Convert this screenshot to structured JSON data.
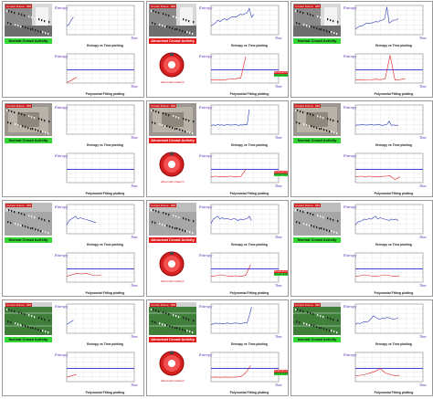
{
  "labels": {
    "frame_tag": "Current Frame : ###",
    "entropy_axis": "Entropy",
    "time_axis": "Time",
    "entropy_caption": "Entropy vs Time plotting",
    "poly_caption": "Polynomial Fitting plotting",
    "normal_status": "Normal Crowd Activity",
    "abnormal_status": "Abnormal Crowd Activity",
    "alarm_caption": "Abnormal Crowd (!)",
    "legend_abnormal": "Abnormal Crowd Activity",
    "legend_normal": "Normal Crowd Activity"
  },
  "colors": {
    "entropy_line": "#2b3bb8",
    "threshold_line": "#2a2ad8",
    "fit_line": "#e02020",
    "grid": "#d9d9d9",
    "normal": "#33d633",
    "abnormal": "#e31b1b"
  },
  "panels": [
    {
      "scene": "indoor",
      "state": "normal",
      "entropy": [
        0.3,
        0.35,
        0.5,
        0.6
      ],
      "n": 4,
      "fit": [
        0.02,
        0.1,
        0.2
      ]
    },
    {
      "scene": "indoor",
      "state": "abnormal",
      "entropy": [
        0.3,
        0.35,
        0.4,
        0.5,
        0.45,
        0.5,
        0.55,
        0.5,
        0.55,
        0.6,
        0.62,
        0.6,
        0.65,
        0.7,
        0.68,
        0.72,
        0.75,
        0.9,
        0.6,
        0.7
      ],
      "n": 20,
      "fit": [
        0.1,
        0.12,
        0.1,
        0.12,
        0.14,
        0.15,
        0.18,
        0.9
      ]
    },
    {
      "scene": "indoor",
      "state": "normal",
      "entropy": [
        0.2,
        0.25,
        0.3,
        0.3,
        0.35,
        0.4,
        0.38,
        0.4,
        0.42,
        0.45,
        0.43,
        0.48,
        0.5,
        0.55,
        0.95,
        0.4,
        0.45,
        0.5,
        0.5,
        0.55
      ],
      "n": 20,
      "fit": [
        0.1,
        0.12,
        0.1,
        0.11,
        0.13,
        0.12,
        0.14,
        0.95,
        0.1,
        0.12,
        0.15
      ]
    },
    {
      "scene": "plaza",
      "state": "normal",
      "entropy": [],
      "n": 0,
      "fit": []
    },
    {
      "scene": "plaza",
      "state": "abnormal",
      "entropy": [
        0.3,
        0.32,
        0.3,
        0.33,
        0.31,
        0.32,
        0.3,
        0.33,
        0.32,
        0.31,
        0.32,
        0.33,
        0.3,
        0.32,
        0.31,
        0.33,
        0.32,
        0.85
      ],
      "n": 18,
      "fit": [
        0.2,
        0.22,
        0.2,
        0.21,
        0.22,
        0.2,
        0.21,
        0.45
      ]
    },
    {
      "scene": "plaza",
      "state": "normal",
      "entropy": [
        0.3,
        0.32,
        0.31,
        0.33,
        0.32,
        0.31,
        0.32,
        0.33,
        0.31,
        0.32,
        0.33,
        0.32,
        0.3,
        0.32,
        0.33,
        0.45,
        0.3,
        0.32,
        0.3,
        0.31
      ],
      "n": 20,
      "fit": [
        0.2,
        0.22,
        0.21,
        0.22,
        0.2,
        0.21,
        0.22,
        0.23,
        0.1,
        0.2
      ]
    },
    {
      "scene": "street",
      "state": "normal",
      "entropy": [
        0.3,
        0.45,
        0.5,
        0.55,
        0.6,
        0.5,
        0.55,
        0.52,
        0.5,
        0.48,
        0.45,
        0.43,
        0.4,
        0.38
      ],
      "n": 14,
      "fit": [
        0.2,
        0.25,
        0.3,
        0.28,
        0.3,
        0.25,
        0.22,
        0.25
      ]
    },
    {
      "scene": "street",
      "state": "abnormal",
      "entropy": [
        0.35,
        0.5,
        0.55,
        0.6,
        0.5,
        0.55,
        0.5,
        0.52,
        0.5,
        0.48,
        0.52,
        0.5,
        0.45,
        0.5,
        0.48,
        0.5,
        0.52,
        0.6,
        0.45
      ],
      "n": 19,
      "fit": [
        0.2,
        0.22,
        0.25,
        0.22,
        0.2,
        0.22,
        0.2,
        0.23,
        0.6
      ]
    },
    {
      "scene": "street",
      "state": "normal",
      "entropy": [
        0.3,
        0.4,
        0.42,
        0.45,
        0.5,
        0.48,
        0.52,
        0.5,
        0.55,
        0.6,
        0.5,
        0.55,
        0.52,
        0.5,
        0.48,
        0.45,
        0.5,
        0.48,
        0.5,
        0.45
      ],
      "n": 20,
      "fit": [
        0.2,
        0.22,
        0.25,
        0.22,
        0.2,
        0.22,
        0.25,
        0.22,
        0.2,
        0.22
      ]
    },
    {
      "scene": "field",
      "state": "normal",
      "entropy": [
        0.3,
        0.35,
        0.4,
        0.45
      ],
      "n": 4,
      "fit": [
        0.15,
        0.2,
        0.25
      ]
    },
    {
      "scene": "field",
      "state": "abnormal",
      "entropy": [
        0.3,
        0.32,
        0.35,
        0.33,
        0.34,
        0.32,
        0.33,
        0.35,
        0.34,
        0.33,
        0.34,
        0.35,
        0.34,
        0.33,
        0.34,
        0.36,
        0.35,
        0.6,
        0.9
      ],
      "n": 19,
      "fit": [
        0.15,
        0.16,
        0.15,
        0.16,
        0.15,
        0.16,
        0.17,
        0.3,
        0.55
      ]
    },
    {
      "scene": "field",
      "state": "normal",
      "entropy": [
        0.3,
        0.35,
        0.33,
        0.36,
        0.4,
        0.38,
        0.42,
        0.5,
        0.6,
        0.55,
        0.5,
        0.48,
        0.52,
        0.5,
        0.55,
        0.52,
        0.5,
        0.48,
        0.5,
        0.52
      ],
      "n": 20,
      "fit": [
        0.2,
        0.22,
        0.25,
        0.3,
        0.35,
        0.45,
        0.3,
        0.25,
        0.2,
        0.22
      ]
    }
  ]
}
